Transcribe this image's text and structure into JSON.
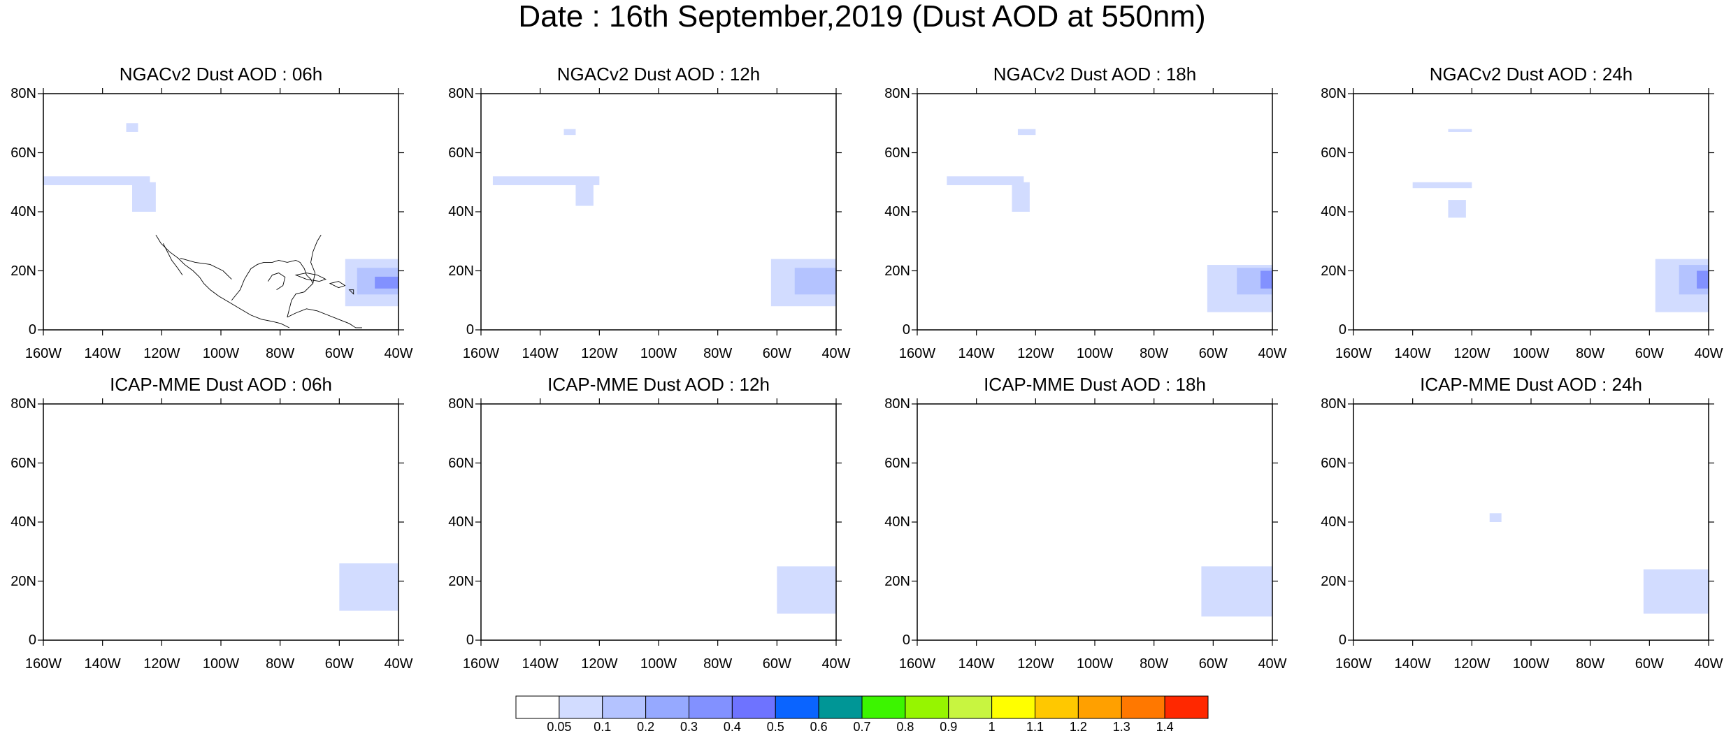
{
  "title": "Date : 16th September,2019 (Dust AOD at 550nm)",
  "lat_labels": [
    "80N",
    "60N",
    "40N",
    "20N",
    "0"
  ],
  "lon_labels": [
    "160W",
    "140W",
    "120W",
    "100W",
    "80W",
    "60W",
    "40W"
  ],
  "panels": [
    {
      "title": "NGACv2 Dust AOD : 06h",
      "model": "NGACv2",
      "hour": "06h"
    },
    {
      "title": "NGACv2 Dust AOD : 12h",
      "model": "NGACv2",
      "hour": "12h"
    },
    {
      "title": "NGACv2 Dust AOD : 18h",
      "model": "NGACv2",
      "hour": "18h"
    },
    {
      "title": "NGACv2 Dust AOD : 24h",
      "model": "NGACv2",
      "hour": "24h"
    },
    {
      "title": "ICAP-MME Dust AOD : 06h",
      "model": "ICAP-MME",
      "hour": "06h"
    },
    {
      "title": "ICAP-MME Dust AOD : 12h",
      "model": "ICAP-MME",
      "hour": "12h"
    },
    {
      "title": "ICAP-MME Dust AOD : 18h",
      "model": "ICAP-MME",
      "hour": "18h"
    },
    {
      "title": "ICAP-MME Dust AOD : 24h",
      "model": "ICAP-MME",
      "hour": "24h"
    }
  ],
  "colorbar": {
    "labels": [
      "0.05",
      "0.1",
      "0.2",
      "0.3",
      "0.4",
      "0.5",
      "0.6",
      "0.7",
      "0.8",
      "0.9",
      "1",
      "1.1",
      "1.2",
      "1.3",
      "1.4"
    ],
    "colors": [
      "#ffffff",
      "#d2dcff",
      "#b4c3ff",
      "#96a9ff",
      "#8291ff",
      "#6e73ff",
      "#0a64ff",
      "#009696",
      "#3cf500",
      "#96f500",
      "#c8f540",
      "#ffff00",
      "#ffc800",
      "#ffa000",
      "#ff7800",
      "#ff2800"
    ]
  },
  "colors": {
    "coast": "#000000",
    "plume_light": "#d2dcff",
    "plume_mid": "#b4c3ff",
    "plume_strong": "#8291ff"
  }
}
